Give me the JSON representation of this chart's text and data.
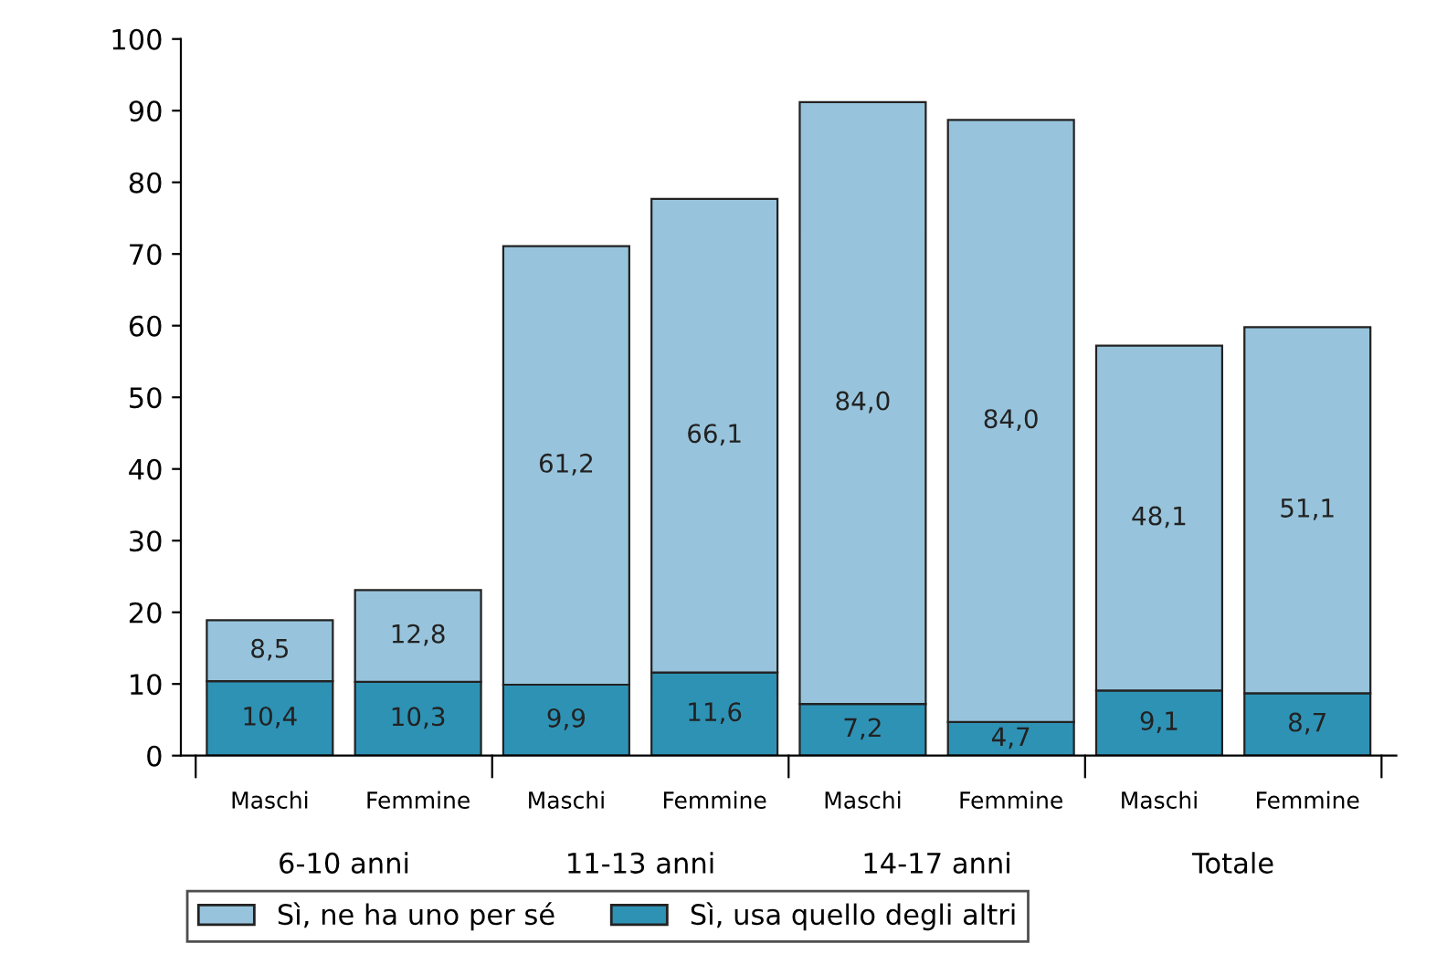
{
  "chart_data": {
    "type": "bar",
    "stacked": true,
    "categories": [
      "Maschi",
      "Femmine",
      "Maschi",
      "Femmine",
      "Maschi",
      "Femmine",
      "Maschi",
      "Femmine"
    ],
    "series": [
      {
        "name": "Sì, usa quello degli altri",
        "color": "#2e92b5",
        "values": [
          10.4,
          10.3,
          9.9,
          11.6,
          7.2,
          4.7,
          9.1,
          8.7
        ],
        "value_labels": [
          "10,4",
          "10,3",
          "9,9",
          "11,6",
          "7,2",
          "4,7",
          "9,1",
          "8,7"
        ]
      },
      {
        "name": "Sì, ne ha uno per sé",
        "color": "#97c4dc",
        "values": [
          8.5,
          12.8,
          61.2,
          66.1,
          84.0,
          84.0,
          48.1,
          51.1
        ],
        "value_labels": [
          "8,5",
          "12,8",
          "61,2",
          "66,1",
          "84,0",
          "84,0",
          "48,1",
          "51,1"
        ]
      }
    ],
    "annotations": [
      "6-10 anni",
      "11-13 anni",
      "14-17 anni",
      "Totale"
    ],
    "ylim": [
      0,
      100
    ],
    "yticks": [
      0,
      10,
      20,
      30,
      40,
      50,
      60,
      70,
      80,
      90,
      100
    ],
    "grid": false,
    "legend": "bottom"
  }
}
